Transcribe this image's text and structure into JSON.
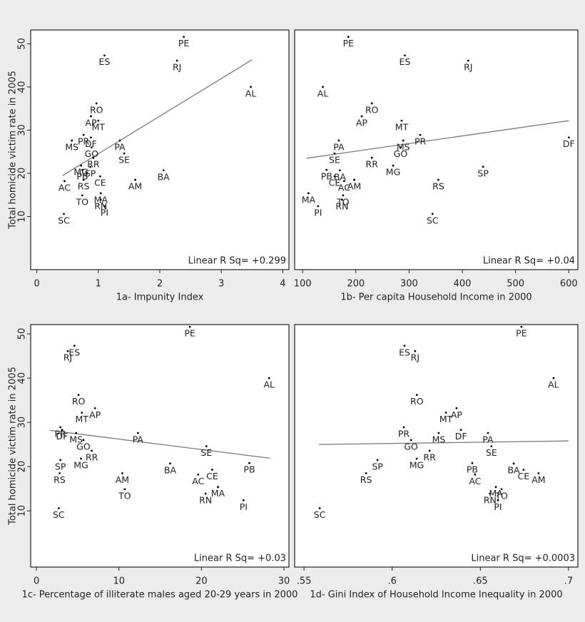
{
  "chart_data": [
    {
      "type": "scatter",
      "xlabel": "1a- Impunity Index",
      "ylabel": "Total homicide victim rate in 2005",
      "annotation": "Linear R Sq= +0.299",
      "point_labels": [
        "PE",
        "ES",
        "RJ",
        "AL",
        "RO",
        "AP",
        "MT",
        "PR",
        "DF",
        "MS",
        "PA",
        "GO",
        "SE",
        "RR",
        "MG",
        "SP",
        "PB",
        "BA",
        "CE",
        "AC",
        "RS",
        "AM",
        "MA",
        "TO",
        "RN",
        "PI",
        "SC"
      ],
      "x": [
        2.39,
        1.1,
        2.28,
        3.48,
        0.97,
        0.88,
        1.0,
        0.76,
        0.88,
        0.57,
        1.35,
        0.89,
        1.42,
        0.92,
        0.72,
        0.87,
        0.74,
        2.06,
        1.03,
        0.45,
        0.76,
        1.6,
        1.04,
        0.74,
        1.04,
        1.1,
        0.44
      ],
      "y": [
        51.6,
        47.3,
        46.1,
        40,
        36.2,
        33.2,
        32.2,
        28.9,
        28.3,
        27.6,
        27.6,
        26,
        24.6,
        23.6,
        21.8,
        21.5,
        20.8,
        20.7,
        19.3,
        18.2,
        18.5,
        18.5,
        15.4,
        14.9,
        13.9,
        12.4,
        10.6
      ],
      "fit": {
        "x": [
          0.42,
          3.5
        ],
        "y": [
          19.5,
          46.3
        ]
      },
      "xlim": [
        -0.1,
        4.1
      ],
      "ylim": [
        -2.3,
        53.2
      ],
      "xticks": [
        0,
        1,
        2,
        3,
        4
      ],
      "yticks": [
        10,
        20,
        30,
        40,
        50
      ],
      "color": "#000000",
      "fit_color": "#7a7a7a"
    },
    {
      "type": "scatter",
      "xlabel": "1b- Per capita Household Income in 2000",
      "annotation": "Linear R Sq= +0.04",
      "point_labels": [
        "PE",
        "ES",
        "RJ",
        "AL",
        "RO",
        "AP",
        "MT",
        "PR",
        "DF",
        "MS",
        "PA",
        "GO",
        "SE",
        "RR",
        "MG",
        "SP",
        "PB",
        "BA",
        "CE",
        "AC",
        "RS",
        "AM",
        "MA",
        "TO",
        "RN",
        "PI",
        "SC"
      ],
      "x": [
        186,
        292,
        411,
        138,
        230,
        211,
        286,
        321,
        600,
        289,
        168,
        284,
        160,
        230,
        270,
        439,
        145,
        170,
        160,
        178,
        355,
        197,
        111,
        176,
        174,
        129,
        344
      ],
      "y": [
        51.6,
        47.3,
        46.1,
        40,
        36.2,
        33.2,
        32.2,
        28.9,
        28.3,
        27.6,
        27.6,
        26,
        24.6,
        23.6,
        21.8,
        21.5,
        20.8,
        20.7,
        19.3,
        18.2,
        18.5,
        18.5,
        15.4,
        14.9,
        13.9,
        12.4,
        10.6
      ],
      "fit": {
        "x": [
          108,
          600
        ],
        "y": [
          23.5,
          32.2
        ]
      },
      "xlim": [
        85,
        617
      ],
      "ylim": [
        -2.3,
        53.2
      ],
      "xticks": [
        100,
        200,
        300,
        400,
        500,
        600
      ],
      "color": "#000000",
      "fit_color": "#7a7a7a"
    },
    {
      "type": "scatter",
      "xlabel": "1c- Percentage of illiterate males aged 20-29 years in 2000",
      "ylabel": "Total homicide victim rate in 2005",
      "annotation": "Linear R Sq= +0.03",
      "point_labels": [
        "PE",
        "ES",
        "RJ",
        "AL",
        "RO",
        "AP",
        "MT",
        "PR",
        "DF",
        "MS",
        "PA",
        "GO",
        "SE",
        "RR",
        "MG",
        "SP",
        "PB",
        "BA",
        "CE",
        "AC",
        "RS",
        "AM",
        "MA",
        "TO",
        "RN",
        "PI",
        "SC"
      ],
      "x": [
        18.6,
        4.6,
        3.8,
        28.2,
        5.1,
        7.1,
        5.5,
        2.9,
        3.1,
        4.8,
        12.3,
        5.7,
        20.6,
        6.7,
        5.4,
        2.9,
        25.8,
        16.2,
        21.3,
        19.6,
        2.8,
        10.4,
        22.0,
        10.7,
        20.5,
        25.1,
        2.7
      ],
      "y": [
        51.6,
        47.3,
        46.1,
        40,
        36.2,
        33.2,
        32.2,
        28.9,
        28.3,
        27.6,
        27.6,
        26,
        24.6,
        23.6,
        21.8,
        21.5,
        20.8,
        20.7,
        19.3,
        18.2,
        18.5,
        18.5,
        15.4,
        14.9,
        13.9,
        12.4,
        10.6
      ],
      "fit": {
        "x": [
          1.6,
          28.3
        ],
        "y": [
          28.2,
          21.9
        ]
      },
      "xlim": [
        -0.7,
        30.6
      ],
      "ylim": [
        -2.7,
        52.1
      ],
      "xticks": [
        0,
        10,
        20,
        30
      ],
      "yticks": [
        10,
        20,
        30,
        40,
        50
      ],
      "color": "#000000",
      "fit_color": "#7a7a7a"
    },
    {
      "type": "scatter",
      "xlabel": "1d- Gini Index of Household Income Inequality in 2000",
      "annotation": "Linear R Sq= +0.0003",
      "point_labels": [
        "PE",
        "ES",
        "RJ",
        "AL",
        "RO",
        "AP",
        "MT",
        "PR",
        "DF",
        "MS",
        "PA",
        "GO",
        "SE",
        "RR",
        "MG",
        "SP",
        "PB",
        "BA",
        "CE",
        "AC",
        "RS",
        "AM",
        "MA",
        "TO",
        "RN",
        "PI",
        "SC"
      ],
      "x": [
        0.6733,
        0.607,
        0.613,
        0.6915,
        0.614,
        0.6365,
        0.6305,
        0.6066,
        0.639,
        0.6264,
        0.6543,
        0.6107,
        0.6563,
        0.6212,
        0.6139,
        0.5917,
        0.6454,
        0.6689,
        0.6745,
        0.647,
        0.5852,
        0.683,
        0.6588,
        0.662,
        0.6555,
        0.66,
        0.5589
      ],
      "y": [
        51.6,
        47.3,
        46.1,
        40,
        36.2,
        33.2,
        32.2,
        28.9,
        28.3,
        27.6,
        27.6,
        26,
        24.6,
        23.6,
        21.8,
        21.5,
        20.8,
        20.7,
        19.3,
        18.2,
        18.5,
        18.5,
        15.4,
        14.9,
        13.9,
        12.4,
        10.6
      ],
      "fit": {
        "x": [
          0.5585,
          0.7
        ],
        "y": [
          25.0,
          25.8
        ]
      },
      "xlim": [
        0.5447,
        0.7053
      ],
      "ylim": [
        -2.7,
        52.1
      ],
      "xticks": [
        {
          "value": 0.55,
          "label": ".55"
        },
        {
          "value": 0.6,
          "label": ".6"
        },
        {
          "value": 0.65,
          "label": ".65"
        },
        {
          "value": 0.7,
          "label": ".7"
        }
      ],
      "color": "#000000",
      "fit_color": "#7a7a7a"
    }
  ]
}
